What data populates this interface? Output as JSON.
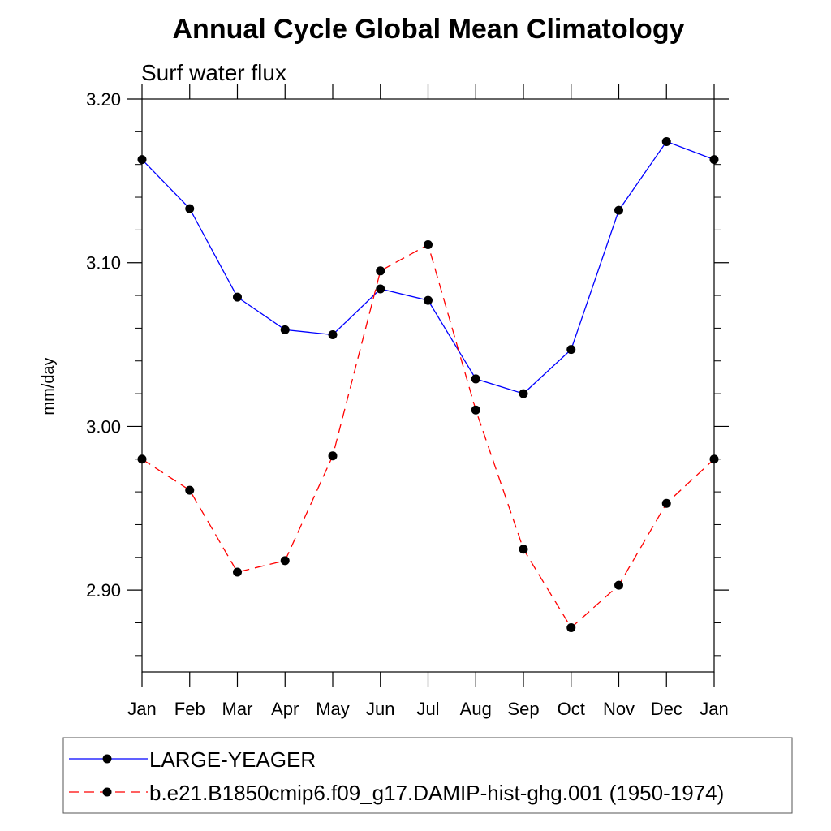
{
  "chart_data": {
    "type": "line",
    "title": "Annual Cycle Global Mean Climatology",
    "subtitle": "Surf water flux",
    "xlabel": "",
    "ylabel": "mm/day",
    "ylim": [
      2.85,
      3.2
    ],
    "yticks": [
      "2.90",
      "3.00",
      "3.10",
      "3.20"
    ],
    "yticks_values": [
      2.9,
      3.0,
      3.1,
      3.2
    ],
    "categories": [
      "Jan",
      "Feb",
      "Mar",
      "Apr",
      "May",
      "Jun",
      "Jul",
      "Aug",
      "Sep",
      "Oct",
      "Nov",
      "Dec",
      "Jan"
    ],
    "grid": false,
    "legend_position": "bottom",
    "series": [
      {
        "name": "LARGE-YEAGER",
        "color": "#0000ff",
        "style": "solid",
        "values": [
          3.163,
          3.133,
          3.079,
          3.059,
          3.056,
          3.084,
          3.077,
          3.029,
          3.02,
          3.047,
          3.132,
          3.174,
          3.163
        ]
      },
      {
        "name": "b.e21.B1850cmip6.f09_g17.DAMIP-hist-ghg.001 (1950-1974)",
        "color": "#ff0000",
        "style": "dashed",
        "values": [
          2.98,
          2.961,
          2.911,
          2.918,
          2.982,
          3.095,
          3.111,
          3.01,
          2.925,
          2.877,
          2.903,
          2.953,
          2.98
        ]
      }
    ]
  }
}
